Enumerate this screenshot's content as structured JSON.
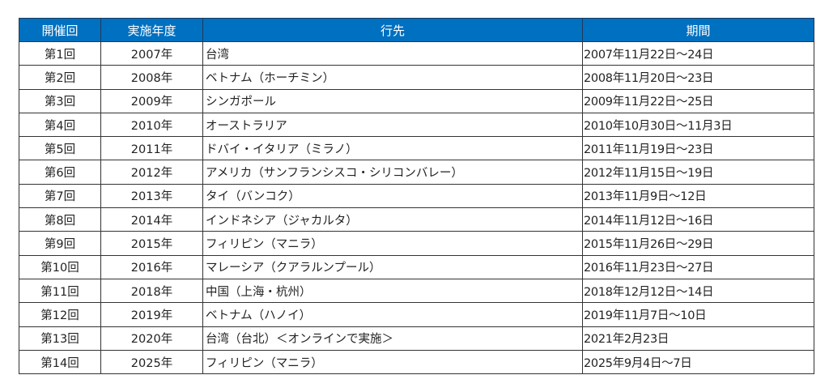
{
  "headers": [
    "開催回",
    "実施年度",
    "行先",
    "期間"
  ],
  "rows": [
    {
      "session": "第1回",
      "year": "2007年",
      "destination": "台湾",
      "period": "2007年11月22日～24日"
    },
    {
      "session": "第2回",
      "year": "2008年",
      "destination": "ベトナム（ホーチミン）",
      "period": "2008年11月20日～23日"
    },
    {
      "session": "第3回",
      "year": "2009年",
      "destination": "シンガポール",
      "period": "2009年11月22日～25日"
    },
    {
      "session": "第4回",
      "year": "2010年",
      "destination": "オーストラリア",
      "period": "2010年10月30日～11月3日"
    },
    {
      "session": "第5回",
      "year": "2011年",
      "destination": "ドバイ・イタリア（ミラノ）",
      "period": "2011年11月19日～23日"
    },
    {
      "session": "第6回",
      "year": "2012年",
      "destination": "アメリカ（サンフランシスコ・シリコンバレー）",
      "period": "2012年11月15日～19日"
    },
    {
      "session": "第7回",
      "year": "2013年",
      "destination": "タイ（バンコク）",
      "period": "2013年11月9日～12日"
    },
    {
      "session": "第8回",
      "year": "2014年",
      "destination": "インドネシア（ジャカルタ）",
      "period": "2014年11月12日～16日"
    },
    {
      "session": "第9回",
      "year": "2015年",
      "destination": "フィリピン（マニラ）",
      "period": "2015年11月26日～29日"
    },
    {
      "session": "第10回",
      "year": "2016年",
      "destination": "マレーシア（クアラルンプール）",
      "period": "2016年11月23日～27日"
    },
    {
      "session": "第11回",
      "year": "2018年",
      "destination": "中国（上海・杭州）",
      "period": "2018年12月12日～14日"
    },
    {
      "session": "第12回",
      "year": "2019年",
      "destination": "ベトナム（ハノイ）",
      "period": "2019年11月7日～10日"
    },
    {
      "session": "第13回",
      "year": "2020年",
      "destination": "台湾（台北）＜オンラインで実施＞",
      "period": "2021年2月23日"
    },
    {
      "session": "第14回",
      "year": "2025年",
      "destination": "フィリピン（マニラ）",
      "period": "2025年9月4日～7日"
    }
  ],
  "colors": {
    "header_bg": "#0070c0",
    "header_text": "#ffffff"
  }
}
